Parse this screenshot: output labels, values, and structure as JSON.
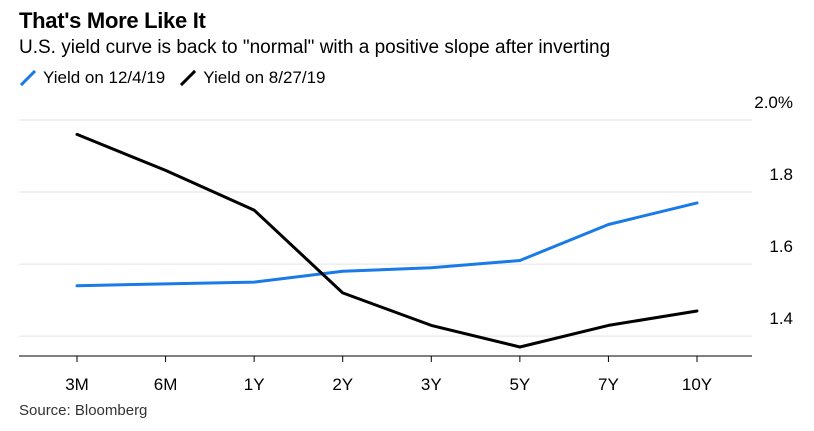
{
  "header": {
    "title": "That's More Like It",
    "subtitle": "U.S. yield curve is back to \"normal\" with a positive slope after inverting"
  },
  "footer": {
    "source": "Source: Bloomberg"
  },
  "colors": {
    "series_1": "#1a7ae8",
    "series_2": "#000000",
    "grid": "#e3e3e3"
  },
  "chart_data": {
    "type": "line",
    "categories": [
      "3M",
      "6M",
      "1Y",
      "2Y",
      "3Y",
      "5Y",
      "7Y",
      "10Y"
    ],
    "series": [
      {
        "name": "Yield on 12/4/19",
        "color": "#1a7ae8",
        "values": [
          1.54,
          1.545,
          1.55,
          1.58,
          1.59,
          1.61,
          1.71,
          1.77
        ]
      },
      {
        "name": "Yield on 8/27/19",
        "color": "#000000",
        "values": [
          1.96,
          1.86,
          1.75,
          1.52,
          1.43,
          1.37,
          1.43,
          1.47
        ]
      }
    ],
    "y_ticks": [
      {
        "value": 2.0,
        "label": "2.0%"
      },
      {
        "value": 1.8,
        "label": "1.8"
      },
      {
        "value": 1.6,
        "label": "1.6"
      },
      {
        "value": 1.4,
        "label": "1.4"
      }
    ],
    "ylim": [
      1.345,
      2.0
    ],
    "grid": true,
    "legend_position": "top-left",
    "y_axis_side": "right"
  }
}
